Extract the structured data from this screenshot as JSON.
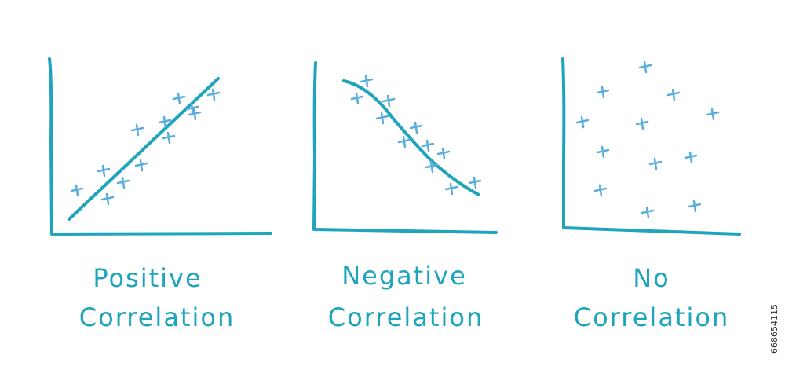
{
  "panels": [
    {
      "label": [
        "Positive",
        "Correlation"
      ]
    },
    {
      "label": [
        "Negative",
        "Correlation"
      ]
    },
    {
      "label": [
        "No",
        "Correlation"
      ]
    }
  ],
  "image_id": "668654115"
}
